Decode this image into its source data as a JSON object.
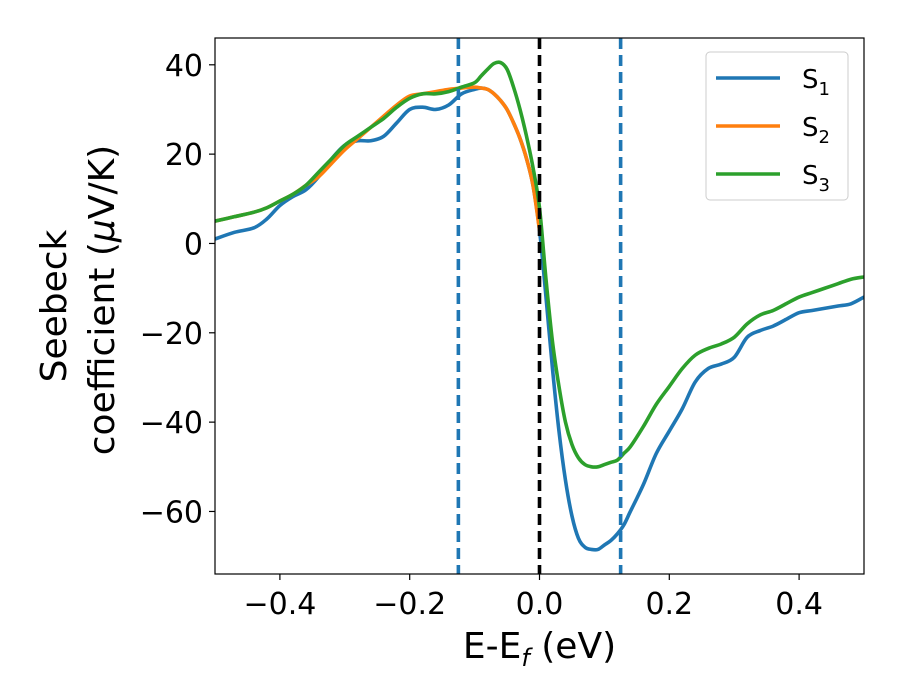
{
  "chart_data": {
    "type": "line",
    "title": "",
    "xlabel": {
      "main": "E-E",
      "sub": "f",
      "tail": " (eV)"
    },
    "ylabel": {
      "line1": "Seebeck",
      "line2_main": "coefficient  (",
      "line2_mu": "μ",
      "line2_tail": "V/K)"
    },
    "xlim": [
      -0.5,
      0.5
    ],
    "ylim": [
      -74,
      46
    ],
    "xticks": [
      -0.4,
      -0.2,
      0.0,
      0.2,
      0.4
    ],
    "xtick_labels": [
      "−0.4",
      "−0.2",
      "0.0",
      "0.2",
      "0.4"
    ],
    "yticks": [
      -60,
      -40,
      -20,
      0,
      20,
      40
    ],
    "ytick_labels": [
      "−60",
      "−40",
      "−20",
      "0",
      "20",
      "40"
    ],
    "grid": false,
    "legend_position": "top-right",
    "vlines": [
      {
        "x": -0.125,
        "style": "dashed",
        "color": "#1f77b4"
      },
      {
        "x": 0.0,
        "style": "dashed",
        "color": "#000000"
      },
      {
        "x": 0.125,
        "style": "dashed",
        "color": "#1f77b4"
      }
    ],
    "series": [
      {
        "name": "S",
        "sub": "1",
        "color": "#1f77b4",
        "x": [
          -0.5,
          -0.47,
          -0.44,
          -0.42,
          -0.4,
          -0.38,
          -0.36,
          -0.34,
          -0.32,
          -0.3,
          -0.28,
          -0.26,
          -0.24,
          -0.22,
          -0.2,
          -0.18,
          -0.16,
          -0.14,
          -0.12,
          -0.1,
          -0.09,
          -0.08,
          -0.07,
          -0.06,
          -0.05,
          -0.04,
          -0.03,
          -0.02,
          -0.01,
          0.0,
          0.01,
          0.02,
          0.03,
          0.04,
          0.05,
          0.06,
          0.07,
          0.08,
          0.09,
          0.1,
          0.11,
          0.12,
          0.13,
          0.14,
          0.16,
          0.18,
          0.2,
          0.22,
          0.24,
          0.26,
          0.28,
          0.3,
          0.32,
          0.34,
          0.36,
          0.38,
          0.4,
          0.42,
          0.44,
          0.46,
          0.48,
          0.5
        ],
        "y": [
          1,
          2.5,
          3.5,
          5.5,
          8.5,
          10.5,
          12,
          15,
          19,
          22,
          23,
          23,
          24,
          27,
          30,
          30.5,
          30,
          31,
          33.5,
          34.5,
          34.8,
          34.5,
          33.5,
          32,
          30,
          27,
          23.5,
          19,
          13,
          3,
          -12,
          -28,
          -42,
          -53,
          -61,
          -66,
          -68,
          -68.5,
          -68.5,
          -67.5,
          -66.5,
          -65,
          -63,
          -60,
          -54,
          -47,
          -42,
          -37,
          -31,
          -28,
          -27,
          -25.5,
          -21,
          -19.5,
          -18.5,
          -17,
          -15.5,
          -15,
          -14.5,
          -14,
          -13.5,
          -12
        ]
      },
      {
        "name": "S",
        "sub": "2",
        "color": "#ff7f0e",
        "x": [
          -0.5,
          -0.47,
          -0.44,
          -0.42,
          -0.4,
          -0.38,
          -0.36,
          -0.34,
          -0.32,
          -0.3,
          -0.28,
          -0.26,
          -0.24,
          -0.22,
          -0.2,
          -0.18,
          -0.16,
          -0.14,
          -0.12,
          -0.1,
          -0.09,
          -0.08,
          -0.07,
          -0.06,
          -0.05,
          -0.04,
          -0.03,
          -0.02,
          -0.01,
          0.0
        ],
        "y": [
          5,
          6,
          7,
          8,
          9.5,
          11,
          13,
          15,
          18,
          21,
          23.5,
          26,
          28.5,
          31,
          33,
          33.5,
          34,
          34.5,
          34.8,
          35,
          34.8,
          34.5,
          33.5,
          32,
          30,
          27,
          23.5,
          19,
          13,
          3
        ]
      },
      {
        "name": "S",
        "sub": "3",
        "color": "#2ca02c",
        "x": [
          -0.5,
          -0.47,
          -0.44,
          -0.42,
          -0.4,
          -0.38,
          -0.36,
          -0.34,
          -0.32,
          -0.3,
          -0.28,
          -0.26,
          -0.24,
          -0.22,
          -0.2,
          -0.18,
          -0.16,
          -0.14,
          -0.12,
          -0.1,
          -0.09,
          -0.08,
          -0.07,
          -0.06,
          -0.05,
          -0.04,
          -0.03,
          -0.02,
          -0.01,
          0.0,
          0.01,
          0.02,
          0.03,
          0.04,
          0.05,
          0.06,
          0.07,
          0.08,
          0.09,
          0.1,
          0.11,
          0.12,
          0.13,
          0.14,
          0.16,
          0.18,
          0.2,
          0.22,
          0.24,
          0.26,
          0.28,
          0.3,
          0.32,
          0.34,
          0.36,
          0.38,
          0.4,
          0.42,
          0.44,
          0.46,
          0.48,
          0.5
        ],
        "y": [
          5,
          6,
          7,
          8,
          9.5,
          11,
          13,
          16,
          19,
          22,
          24,
          26,
          28,
          30.5,
          32.5,
          33.5,
          33.5,
          34,
          35,
          36,
          37.5,
          39,
          40.3,
          40.5,
          39,
          35,
          30,
          24,
          17,
          8,
          -8,
          -22,
          -32,
          -40,
          -45,
          -48,
          -49.5,
          -50,
          -50,
          -49.5,
          -49,
          -48.5,
          -47,
          -45.5,
          -41,
          -36,
          -32,
          -28,
          -25,
          -23.5,
          -22.5,
          -21,
          -18,
          -16,
          -15,
          -13.5,
          -12,
          -11,
          -10,
          -9,
          -8,
          -7.5
        ]
      }
    ]
  }
}
